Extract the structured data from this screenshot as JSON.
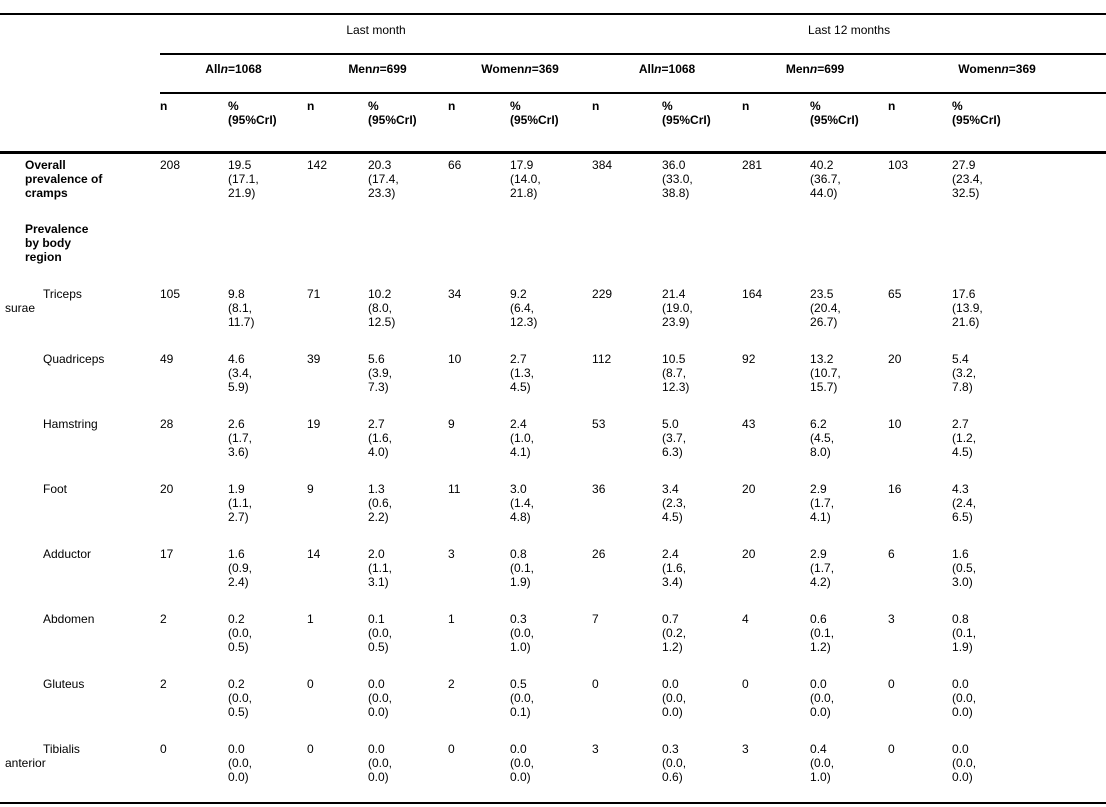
{
  "table": {
    "periods": [
      "Last month",
      "Last 12 months"
    ],
    "n_symbol": "n",
    "groups": [
      {
        "label": "All",
        "count": "=1068"
      },
      {
        "label": "Men",
        "count": "=699"
      },
      {
        "label": "Women",
        "count": "=369"
      },
      {
        "label": "All",
        "count": "=1068"
      },
      {
        "label": "Men",
        "count": "=699"
      },
      {
        "label": "Women",
        "count": "=369"
      }
    ],
    "sub_headers": {
      "n": "n",
      "pct": "%\n(95%CrI)"
    },
    "rows": [
      {
        "label": "Overall\nprevalence of\ncramps",
        "bold": true,
        "cells": [
          "208",
          "19.5\n(17.1,\n21.9)",
          "142",
          "20.3\n(17.4,\n23.3)",
          "66",
          "17.9\n(14.0,\n21.8)",
          "384",
          "36.0\n(33.0,\n38.8)",
          "281",
          "40.2\n(36.7,\n44.0)",
          "103",
          "27.9\n(23.4,\n32.5)"
        ]
      },
      {
        "label": "Prevalence\nby body\nregion",
        "bold": true,
        "cells": [
          "",
          "",
          "",
          "",
          "",
          "",
          "",
          "",
          "",
          "",
          "",
          ""
        ]
      },
      {
        "label": "Triceps\nsurae",
        "bold": false,
        "cells": [
          "105",
          "9.8\n(8.1,\n11.7)",
          "71",
          "10.2\n(8.0,\n12.5)",
          "34",
          "9.2\n(6.4,\n12.3)",
          "229",
          "21.4\n(19.0,\n23.9)",
          "164",
          "23.5\n(20.4,\n26.7)",
          "65",
          "17.6\n(13.9,\n21.6)"
        ]
      },
      {
        "label": "Quadriceps",
        "bold": false,
        "cells": [
          "49",
          "4.6\n(3.4,\n5.9)",
          "39",
          "5.6\n(3.9,\n7.3)",
          "10",
          "2.7\n(1.3,\n4.5)",
          "112",
          "10.5\n(8.7,\n12.3)",
          "92",
          "13.2\n(10.7,\n15.7)",
          "20",
          "5.4\n(3.2,\n7.8)"
        ]
      },
      {
        "label": "Hamstring",
        "bold": false,
        "cells": [
          "28",
          "2.6\n(1.7,\n3.6)",
          "19",
          "2.7\n(1.6,\n4.0)",
          "9",
          "2.4\n(1.0,\n4.1)",
          "53",
          "5.0\n(3.7,\n6.3)",
          "43",
          "6.2\n(4.5,\n8.0)",
          "10",
          "2.7\n(1.2,\n4.5)"
        ]
      },
      {
        "label": "Foot",
        "bold": false,
        "cells": [
          "20",
          "1.9\n(1.1,\n2.7)",
          "9",
          "1.3\n(0.6,\n2.2)",
          "11",
          "3.0\n(1.4,\n4.8)",
          "36",
          "3.4\n(2.3,\n4.5)",
          "20",
          "2.9\n(1.7,\n4.1)",
          "16",
          "4.3\n(2.4,\n6.5)"
        ]
      },
      {
        "label": "Adductor",
        "bold": false,
        "cells": [
          "17",
          "1.6\n(0.9,\n2.4)",
          "14",
          "2.0\n(1.1,\n3.1)",
          "3",
          "0.8\n(0.1,\n1.9)",
          "26",
          "2.4\n(1.6,\n3.4)",
          "20",
          "2.9\n(1.7,\n4.2)",
          "6",
          "1.6\n(0.5,\n3.0)"
        ]
      },
      {
        "label": "Abdomen",
        "bold": false,
        "cells": [
          "2",
          "0.2\n(0.0,\n0.5)",
          "1",
          "0.1\n(0.0,\n0.5)",
          "1",
          "0.3\n(0.0,\n1.0)",
          "7",
          "0.7\n(0.2,\n1.2)",
          "4",
          "0.6\n(0.1,\n1.2)",
          "3",
          "0.8\n(0.1,\n1.9)"
        ]
      },
      {
        "label": "Gluteus",
        "bold": false,
        "cells": [
          "2",
          "0.2\n(0.0,\n0.5)",
          "0",
          "0.0\n(0.0,\n0.0)",
          "2",
          "0.5\n(0.0,\n0.1)",
          "0",
          "0.0\n(0.0,\n0.0)",
          "0",
          "0.0\n(0.0,\n0.0)",
          "0",
          "0.0\n(0.0,\n0.0)"
        ]
      },
      {
        "label": "Tibialis\nanterior",
        "bold": false,
        "cells": [
          "0",
          "0.0\n(0.0,\n0.0)",
          "0",
          "0.0\n(0.0,\n0.0)",
          "0",
          "0.0\n(0.0,\n0.0)",
          "3",
          "0.3\n(0.0,\n0.6)",
          "3",
          "0.4\n(0.0,\n1.0)",
          "0",
          "0.0\n(0.0,\n0.0)"
        ]
      }
    ]
  }
}
